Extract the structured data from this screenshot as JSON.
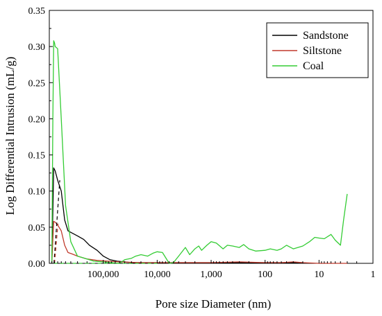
{
  "chart_data": {
    "type": "line",
    "title": "",
    "xlabel": "Pore size Diameter (nm)",
    "ylabel": "Log Differential Intrusion (mL/g)",
    "x_scale": "log",
    "x_reversed": true,
    "xlim": [
      1000000,
      1
    ],
    "ylim": [
      0,
      0.35
    ],
    "grid": false,
    "legend_position": "top-right",
    "x_ticks": [
      {
        "value": 100000,
        "label": "100,000"
      },
      {
        "value": 10000,
        "label": "10,000"
      },
      {
        "value": 1000,
        "label": "1,000"
      },
      {
        "value": 100,
        "label": "100"
      },
      {
        "value": 10,
        "label": "10"
      },
      {
        "value": 1,
        "label": "1"
      }
    ],
    "y_ticks": [
      {
        "value": 0.0,
        "label": "0.00"
      },
      {
        "value": 0.05,
        "label": "0.05"
      },
      {
        "value": 0.1,
        "label": "0.10"
      },
      {
        "value": 0.15,
        "label": "0.15"
      },
      {
        "value": 0.2,
        "label": "0.20"
      },
      {
        "value": 0.25,
        "label": "0.25"
      },
      {
        "value": 0.3,
        "label": "0.30"
      },
      {
        "value": 0.35,
        "label": "0.35"
      }
    ],
    "series": [
      {
        "name": "Sandstone",
        "color": "#000000",
        "x": [
          900000,
          830000,
          780000,
          700000,
          600000,
          520000,
          450000,
          380000,
          300000,
          230000,
          180000,
          130000,
          100000,
          75000,
          55000,
          40000,
          30000,
          20000,
          10000,
          3000,
          1000,
          300,
          100,
          30,
          20
        ],
        "y": [
          0.0,
          0.132,
          0.128,
          0.115,
          0.1,
          0.06,
          0.045,
          0.042,
          0.038,
          0.033,
          0.025,
          0.018,
          0.01,
          0.005,
          0.003,
          0.002,
          0.001,
          0.001,
          0.001,
          0.001,
          0.001,
          0.001,
          0.001,
          0.001,
          0.001
        ]
      },
      {
        "name": "Siltstone",
        "color": "#c0392b",
        "x": [
          900000,
          830000,
          780000,
          700000,
          600000,
          520000,
          450000,
          380000,
          300000,
          200000,
          130000,
          80000,
          50000,
          20000,
          10000,
          3000,
          1000,
          300,
          100,
          50,
          30,
          20,
          10,
          5,
          3
        ],
        "y": [
          0.0,
          0.058,
          0.057,
          0.053,
          0.045,
          0.025,
          0.015,
          0.013,
          0.01,
          0.006,
          0.004,
          0.003,
          0.002,
          0.001,
          0.001,
          0.001,
          0.001,
          0.002,
          0.001,
          0.001,
          0.002,
          0.001,
          0.0,
          0.0,
          0.0
        ]
      },
      {
        "name": "Coal",
        "color": "#33cc33",
        "x": [
          900000,
          860000,
          830000,
          800000,
          780000,
          700000,
          600000,
          500000,
          400000,
          300000,
          200000,
          150000,
          100000,
          70000,
          50000,
          40000,
          30000,
          25000,
          20000,
          15000,
          12000,
          10000,
          8000,
          6000,
          5000,
          4000,
          3000,
          2500,
          2000,
          1700,
          1500,
          1200,
          1000,
          800,
          600,
          500,
          400,
          300,
          250,
          200,
          150,
          100,
          80,
          60,
          50,
          40,
          30,
          20,
          15,
          12,
          10,
          8,
          6,
          5,
          4,
          3.5,
          3
        ],
        "y": [
          0.0,
          0.2,
          0.308,
          0.305,
          0.3,
          0.297,
          0.2,
          0.08,
          0.03,
          0.01,
          0.006,
          0.003,
          0.002,
          0.001,
          0.0,
          0.005,
          0.007,
          0.01,
          0.012,
          0.01,
          0.014,
          0.016,
          0.015,
          0.0,
          0.001,
          0.01,
          0.022,
          0.012,
          0.02,
          0.024,
          0.018,
          0.025,
          0.03,
          0.028,
          0.02,
          0.025,
          0.024,
          0.022,
          0.026,
          0.02,
          0.017,
          0.018,
          0.02,
          0.018,
          0.02,
          0.025,
          0.02,
          0.024,
          0.03,
          0.036,
          0.035,
          0.034,
          0.04,
          0.032,
          0.025,
          0.06,
          0.096
        ]
      }
    ],
    "dashed_guides": [
      {
        "color": "#000000",
        "x": [
          820000,
          640000
        ],
        "y": [
          0.0,
          0.115
        ]
      },
      {
        "color": "#c0392b",
        "x": [
          800000,
          690000
        ],
        "y": [
          0.0,
          0.055
        ]
      },
      {
        "color": "#33cc33",
        "x": [
          820000,
          10000
        ],
        "y": [
          0.0,
          0.0
        ]
      }
    ]
  }
}
